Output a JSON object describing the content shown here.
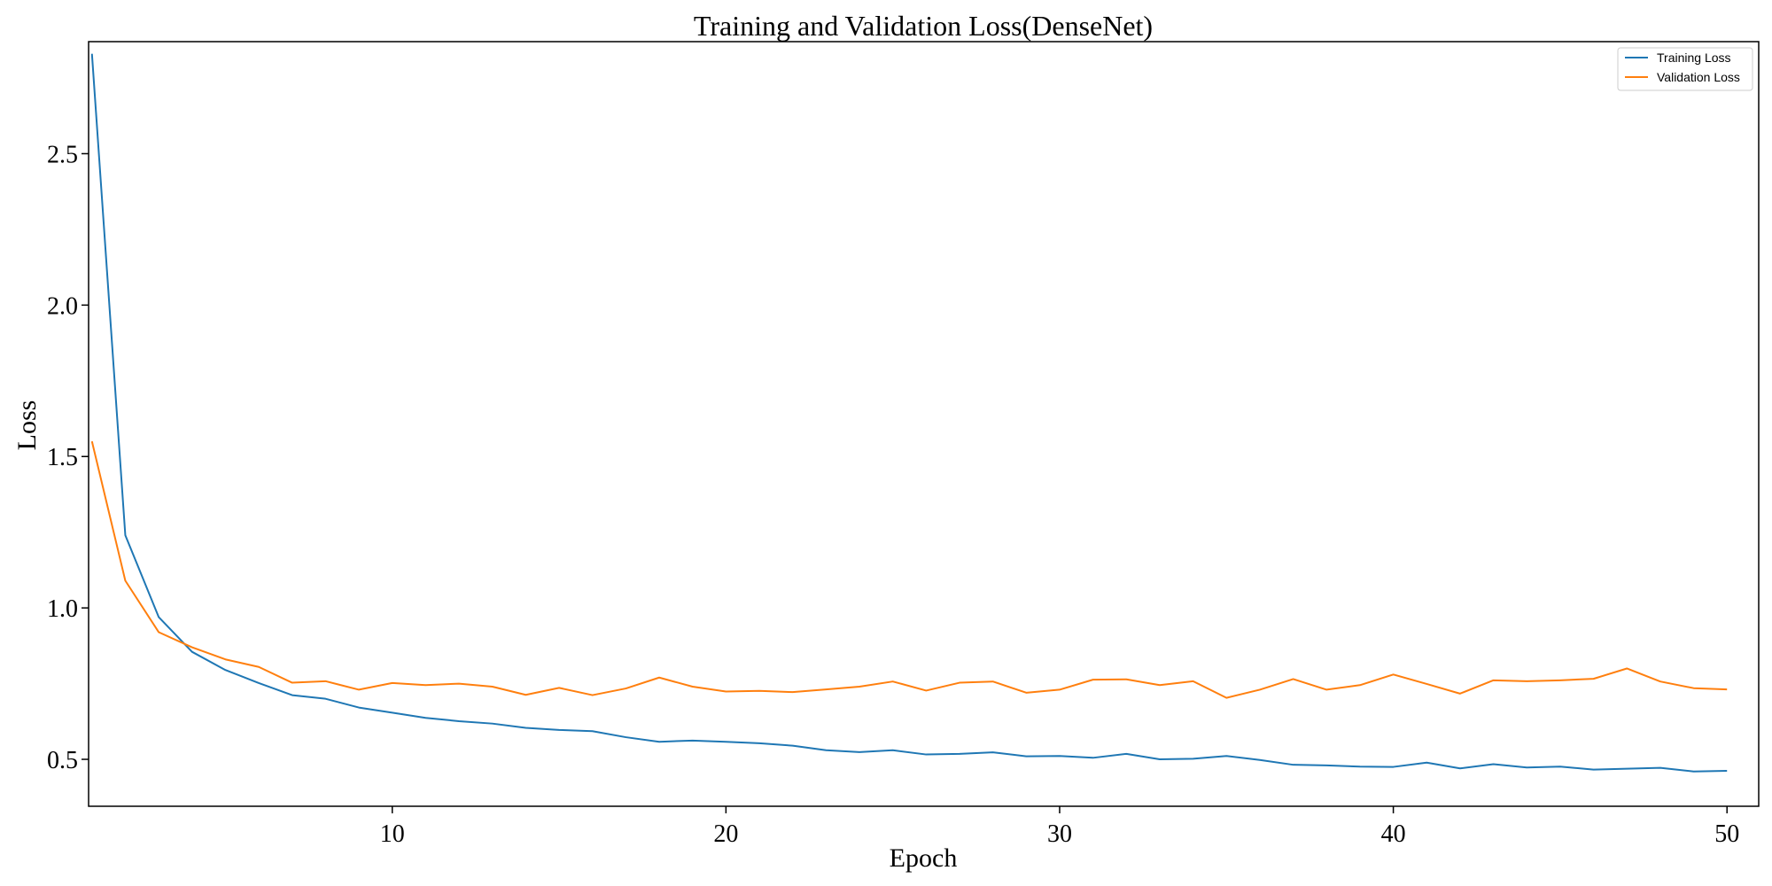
{
  "chart_data": {
    "type": "line",
    "title": "Training and Validation Loss(DenseNet)",
    "xlabel": "Epoch",
    "ylabel": "Loss",
    "xlim": [
      0.9,
      50.95
    ],
    "ylim": [
      0.345,
      2.87
    ],
    "xticks": [
      10,
      20,
      30,
      40,
      50
    ],
    "yticks": [
      0.5,
      1.0,
      1.5,
      2.0,
      2.5
    ],
    "xtick_labels": [
      "10",
      "20",
      "30",
      "40",
      "50"
    ],
    "ytick_labels": [
      "0.5",
      "1.0",
      "1.5",
      "2.0",
      "2.5"
    ],
    "grid": false,
    "legend_position": "top-right",
    "x": [
      1,
      2,
      3,
      4,
      5,
      6,
      7,
      8,
      9,
      10,
      11,
      12,
      13,
      14,
      15,
      16,
      17,
      18,
      19,
      20,
      21,
      22,
      23,
      24,
      25,
      26,
      27,
      28,
      29,
      30,
      31,
      32,
      33,
      34,
      35,
      36,
      37,
      38,
      39,
      40,
      41,
      42,
      43,
      44,
      45,
      46,
      47,
      48,
      49,
      50
    ],
    "series": [
      {
        "name": "Training Loss",
        "color": "#1f77b4",
        "values": [
          2.83,
          1.24,
          0.97,
          0.855,
          0.795,
          0.752,
          0.712,
          0.7,
          0.671,
          0.654,
          0.637,
          0.626,
          0.618,
          0.604,
          0.597,
          0.593,
          0.573,
          0.558,
          0.562,
          0.558,
          0.553,
          0.545,
          0.53,
          0.524,
          0.53,
          0.516,
          0.518,
          0.523,
          0.51,
          0.511,
          0.505,
          0.518,
          0.5,
          0.502,
          0.511,
          0.498,
          0.482,
          0.48,
          0.476,
          0.475,
          0.489,
          0.47,
          0.484,
          0.473,
          0.476,
          0.466,
          0.469,
          0.472,
          0.46,
          0.462
        ]
      },
      {
        "name": "Validation Loss",
        "color": "#ff7f0e",
        "values": [
          1.55,
          1.09,
          0.92,
          0.87,
          0.83,
          0.805,
          0.753,
          0.758,
          0.73,
          0.752,
          0.745,
          0.75,
          0.74,
          0.713,
          0.736,
          0.712,
          0.734,
          0.77,
          0.74,
          0.724,
          0.726,
          0.722,
          0.731,
          0.74,
          0.757,
          0.727,
          0.753,
          0.757,
          0.72,
          0.73,
          0.763,
          0.764,
          0.745,
          0.758,
          0.703,
          0.73,
          0.765,
          0.73,
          0.745,
          0.78,
          0.749,
          0.717,
          0.761,
          0.758,
          0.761,
          0.766,
          0.8,
          0.757,
          0.735,
          0.731
        ]
      }
    ]
  }
}
